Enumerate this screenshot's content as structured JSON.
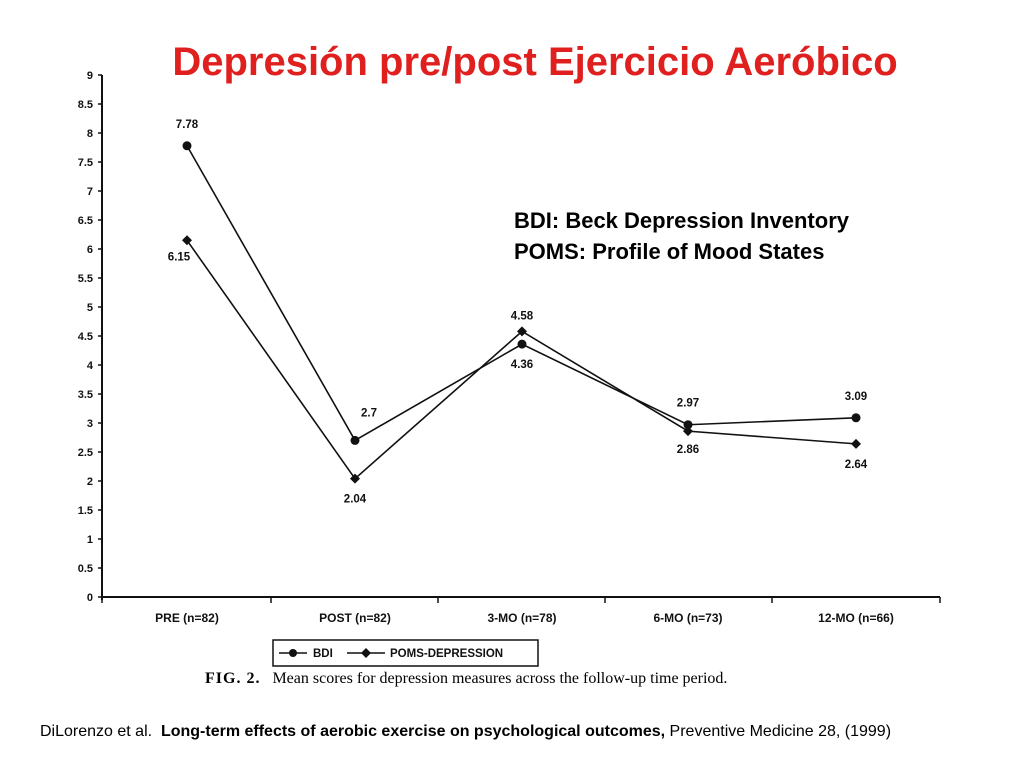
{
  "page": {
    "title": "Depresión pre/post Ejercicio Aeróbico",
    "annotation": {
      "line1": "BDI: Beck Depression Inventory",
      "line2": "POMS: Profile of Mood States"
    },
    "caption": {
      "fig": "FIG. 2.",
      "text": "Mean scores for depression measures across the follow-up time period."
    },
    "citation": {
      "authors": "DiLorenzo et al.",
      "article": "Long-term effects of aerobic exercise on psychological outcomes,",
      "journal": "Preventive Medicine 28,",
      "year": "(1999)"
    }
  },
  "chart_data": {
    "type": "line",
    "title": "Depresión pre/post Ejercicio Aeróbico",
    "xlabel": "",
    "ylabel": "",
    "categories": [
      "PRE (n=82)",
      "POST (n=82)",
      "3-MO (n=78)",
      "6-MO (n=73)",
      "12-MO (n=66)"
    ],
    "ylim": [
      0,
      9
    ],
    "yticks": [
      "0",
      "0.5",
      "1",
      "1.5",
      "2",
      "2.5",
      "3",
      "3.5",
      "4",
      "4.5",
      "5",
      "5.5",
      "6",
      "6.5",
      "7",
      "7.5",
      "8",
      "8.5",
      "9"
    ],
    "series": [
      {
        "name": "BDI",
        "marker": "circle",
        "values": [
          7.78,
          2.7,
          4.36,
          2.97,
          3.09
        ],
        "labels": [
          "7.78",
          "2.7",
          "4.36",
          "2.97",
          "3.09"
        ]
      },
      {
        "name": "POMS-DEPRESSION",
        "marker": "diamond",
        "values": [
          6.15,
          2.04,
          4.58,
          2.86,
          2.64
        ],
        "labels": [
          "6.15",
          "2.04",
          "4.58",
          "2.86",
          "2.64"
        ]
      }
    ],
    "grid": false,
    "legend": "bottom-center",
    "colors": {
      "line": "#111111",
      "title": "#e0201f"
    }
  }
}
